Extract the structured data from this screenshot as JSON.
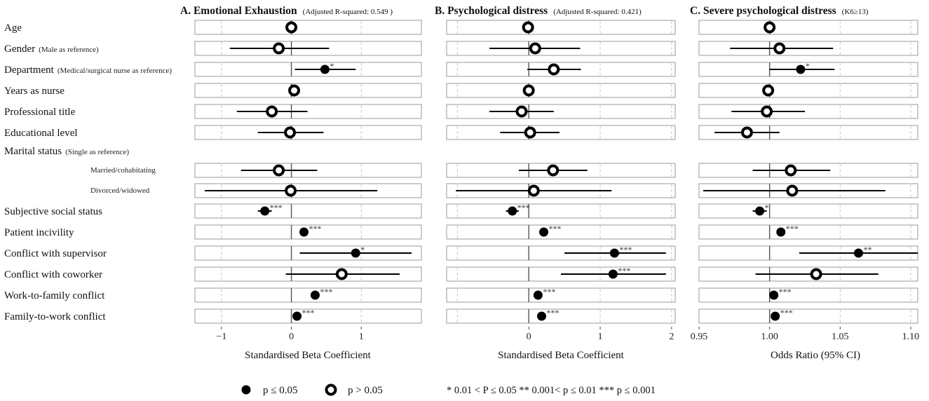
{
  "chart_data": {
    "type": "forest",
    "rows": [
      {
        "id": "age",
        "label": "Age",
        "note": ""
      },
      {
        "id": "gender",
        "label": "Gender",
        "note": "(Male as reference)"
      },
      {
        "id": "department",
        "label": "Department",
        "note": "(Medical/surgical nurse as reference)"
      },
      {
        "id": "years",
        "label": "Years as nurse",
        "note": ""
      },
      {
        "id": "title",
        "label": "Professional title",
        "note": ""
      },
      {
        "id": "education",
        "label": "Educational level",
        "note": ""
      },
      {
        "id": "marital",
        "label": "Marital status",
        "note": "(Single as reference)",
        "header": true
      },
      {
        "id": "married",
        "label": "Married/cohabitating",
        "note": "",
        "sub": true
      },
      {
        "id": "divorced",
        "label": "Divorced/widowed",
        "note": "",
        "sub": true
      },
      {
        "id": "sss",
        "label": "Subjective social status",
        "note": ""
      },
      {
        "id": "patient",
        "label": "Patient incivility",
        "note": ""
      },
      {
        "id": "supervisor",
        "label": "Conflict with supervisor",
        "note": ""
      },
      {
        "id": "coworker",
        "label": "Conflict with coworker",
        "note": ""
      },
      {
        "id": "wfc",
        "label": "Work-to-family conflict",
        "note": ""
      },
      {
        "id": "fwc",
        "label": "Family-to-work conflict",
        "note": ""
      }
    ],
    "panels": [
      {
        "id": "A",
        "title": "A. Emotional Exhaustion",
        "subtitle": "(Adjusted R-squared:  0.549 )",
        "xlabel": "Standardised Beta Coefficient",
        "xlim": [
          -1.38,
          1.86
        ],
        "ref": 0,
        "ticks": [
          -1,
          0,
          1
        ],
        "tick_labels": [
          "−1",
          "0",
          "1"
        ],
        "points": [
          {
            "row": "age",
            "est": 0.0,
            "lo": null,
            "hi": null,
            "sig": false,
            "stars": ""
          },
          {
            "row": "gender",
            "est": -0.18,
            "lo": -0.88,
            "hi": 0.54,
            "sig": false,
            "stars": ""
          },
          {
            "row": "department",
            "est": 0.48,
            "lo": 0.05,
            "hi": 0.92,
            "sig": true,
            "stars": "*"
          },
          {
            "row": "years",
            "est": 0.04,
            "lo": null,
            "hi": null,
            "sig": false,
            "stars": ""
          },
          {
            "row": "title",
            "est": -0.28,
            "lo": -0.78,
            "hi": 0.23,
            "sig": false,
            "stars": ""
          },
          {
            "row": "education",
            "est": -0.02,
            "lo": -0.48,
            "hi": 0.46,
            "sig": false,
            "stars": ""
          },
          {
            "row": "married",
            "est": -0.18,
            "lo": -0.72,
            "hi": 0.37,
            "sig": false,
            "stars": ""
          },
          {
            "row": "divorced",
            "est": -0.01,
            "lo": -1.24,
            "hi": 1.23,
            "sig": false,
            "stars": ""
          },
          {
            "row": "sss",
            "est": -0.38,
            "lo": -0.48,
            "hi": -0.28,
            "sig": true,
            "stars": "***"
          },
          {
            "row": "patient",
            "est": 0.18,
            "lo": null,
            "hi": null,
            "sig": true,
            "stars": "***"
          },
          {
            "row": "supervisor",
            "est": 0.92,
            "lo": 0.12,
            "hi": 1.72,
            "sig": true,
            "stars": "*"
          },
          {
            "row": "coworker",
            "est": 0.72,
            "lo": -0.08,
            "hi": 1.55,
            "sig": false,
            "stars": ""
          },
          {
            "row": "wfc",
            "est": 0.34,
            "lo": null,
            "hi": null,
            "sig": true,
            "stars": "***"
          },
          {
            "row": "fwc",
            "est": 0.08,
            "lo": null,
            "hi": null,
            "sig": true,
            "stars": "***"
          }
        ]
      },
      {
        "id": "B",
        "title": "B. Psychological distress",
        "subtitle": "(Adjusted R-squared:  0.421)",
        "xlabel": "Standardised Beta Coefficient",
        "xlim": [
          -1.15,
          2.05
        ],
        "ref": 0,
        "ticks": [
          0,
          1,
          2
        ],
        "tick_labels": [
          "0",
          "1",
          "2"
        ],
        "grid_extra": [
          -1
        ],
        "points": [
          {
            "row": "age",
            "est": -0.01,
            "lo": null,
            "hi": null,
            "sig": false,
            "stars": ""
          },
          {
            "row": "gender",
            "est": 0.09,
            "lo": -0.55,
            "hi": 0.72,
            "sig": false,
            "stars": ""
          },
          {
            "row": "department",
            "est": 0.35,
            "lo": -0.02,
            "hi": 0.73,
            "sig": false,
            "stars": ""
          },
          {
            "row": "years",
            "est": 0.0,
            "lo": null,
            "hi": null,
            "sig": false,
            "stars": ""
          },
          {
            "row": "title",
            "est": -0.1,
            "lo": -0.55,
            "hi": 0.35,
            "sig": false,
            "stars": ""
          },
          {
            "row": "education",
            "est": 0.02,
            "lo": -0.4,
            "hi": 0.43,
            "sig": false,
            "stars": ""
          },
          {
            "row": "married",
            "est": 0.34,
            "lo": -0.14,
            "hi": 0.82,
            "sig": false,
            "stars": ""
          },
          {
            "row": "divorced",
            "est": 0.07,
            "lo": -1.02,
            "hi": 1.16,
            "sig": false,
            "stars": ""
          },
          {
            "row": "sss",
            "est": -0.23,
            "lo": -0.32,
            "hi": -0.14,
            "sig": true,
            "stars": "***"
          },
          {
            "row": "patient",
            "est": 0.21,
            "lo": null,
            "hi": null,
            "sig": true,
            "stars": "***"
          },
          {
            "row": "supervisor",
            "est": 1.2,
            "lo": 0.5,
            "hi": 1.92,
            "sig": true,
            "stars": "***"
          },
          {
            "row": "coworker",
            "est": 1.18,
            "lo": 0.45,
            "hi": 1.92,
            "sig": true,
            "stars": "***"
          },
          {
            "row": "wfc",
            "est": 0.13,
            "lo": null,
            "hi": null,
            "sig": true,
            "stars": "***"
          },
          {
            "row": "fwc",
            "est": 0.18,
            "lo": null,
            "hi": null,
            "sig": true,
            "stars": "***"
          }
        ]
      },
      {
        "id": "C",
        "title": "C. Severe psychological distress",
        "subtitle": "(K6≥13)",
        "xlabel": "Odds Ratio (95% CI)",
        "xlim": [
          0.95,
          1.105
        ],
        "ref": 1.0,
        "ticks": [
          0.95,
          1.0,
          1.05,
          1.1
        ],
        "tick_labels": [
          "0.95",
          "1.00",
          "1.05",
          "1.10"
        ],
        "points": [
          {
            "row": "age",
            "est": 1.0,
            "lo": null,
            "hi": null,
            "sig": false,
            "stars": ""
          },
          {
            "row": "gender",
            "est": 1.007,
            "lo": 0.972,
            "hi": 1.045,
            "sig": false,
            "stars": ""
          },
          {
            "row": "department",
            "est": 1.022,
            "lo": 1.0,
            "hi": 1.046,
            "sig": true,
            "stars": "*"
          },
          {
            "row": "years",
            "est": 0.999,
            "lo": null,
            "hi": null,
            "sig": false,
            "stars": ""
          },
          {
            "row": "title",
            "est": 0.998,
            "lo": 0.973,
            "hi": 1.025,
            "sig": false,
            "stars": ""
          },
          {
            "row": "education",
            "est": 0.984,
            "lo": 0.961,
            "hi": 1.007,
            "sig": false,
            "stars": ""
          },
          {
            "row": "married",
            "est": 1.015,
            "lo": 0.988,
            "hi": 1.043,
            "sig": false,
            "stars": ""
          },
          {
            "row": "divorced",
            "est": 1.016,
            "lo": 0.953,
            "hi": 1.082,
            "sig": false,
            "stars": ""
          },
          {
            "row": "sss",
            "est": 0.993,
            "lo": 0.988,
            "hi": 0.998,
            "sig": true,
            "stars": "*"
          },
          {
            "row": "patient",
            "est": 1.008,
            "lo": null,
            "hi": null,
            "sig": true,
            "stars": "***"
          },
          {
            "row": "supervisor",
            "est": 1.063,
            "lo": 1.021,
            "hi": 1.105,
            "sig": true,
            "stars": "**"
          },
          {
            "row": "coworker",
            "est": 1.033,
            "lo": 0.99,
            "hi": 1.077,
            "sig": false,
            "stars": ""
          },
          {
            "row": "wfc",
            "est": 1.003,
            "lo": null,
            "hi": null,
            "sig": true,
            "stars": "***"
          },
          {
            "row": "fwc",
            "est": 1.004,
            "lo": null,
            "hi": null,
            "sig": true,
            "stars": "***"
          }
        ]
      }
    ],
    "legend": {
      "sig_label": "p ≤ 0.05",
      "nonsig_label": "p > 0.05"
    },
    "footnote": "* 0.01 < P ≤ 0.05 ** 0.001< p ≤ 0.01 *** p ≤ 0.001"
  }
}
